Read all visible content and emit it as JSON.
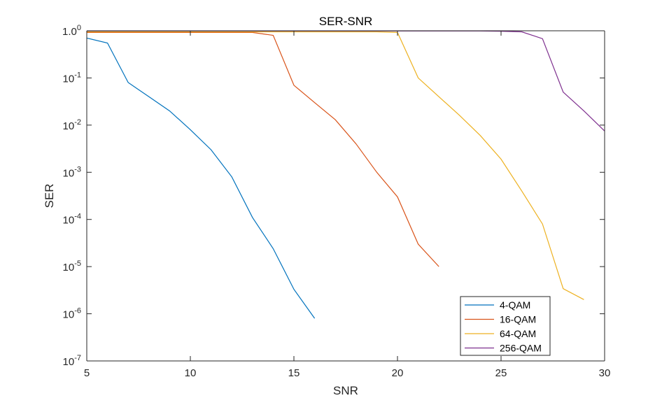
{
  "chart_data": {
    "type": "line",
    "title": "SER-SNR",
    "xlabel": "SNR",
    "ylabel": "SER",
    "xlim": [
      5,
      30
    ],
    "ylim_log10": [
      -7,
      0
    ],
    "y_scale": "log",
    "x_ticks": [
      "5",
      "10",
      "15",
      "20",
      "25",
      "30"
    ],
    "y_ticks": [
      {
        "base": "10",
        "exp": "-7"
      },
      {
        "base": "10",
        "exp": "-6"
      },
      {
        "base": "10",
        "exp": "-5"
      },
      {
        "base": "10",
        "exp": "-4"
      },
      {
        "base": "10",
        "exp": "-3"
      },
      {
        "base": "10",
        "exp": "-2"
      },
      {
        "base": "10",
        "exp": "-1"
      },
      {
        "base": "1.0",
        "exp": "0"
      }
    ],
    "grid": false,
    "legend_position": "bottom-right",
    "series": [
      {
        "name": "4-QAM",
        "color": "#0072BD",
        "x": [
          5,
          6,
          7,
          8,
          9,
          10,
          11,
          12,
          13,
          14,
          15,
          16
        ],
        "y": [
          0.7,
          0.55,
          0.08,
          0.04,
          0.02,
          0.008,
          0.003,
          0.0008,
          0.00011,
          2.4e-05,
          3.3e-06,
          8e-07
        ]
      },
      {
        "name": "16-QAM",
        "color": "#D95319",
        "x": [
          5,
          6,
          7,
          8,
          9,
          10,
          11,
          12,
          13,
          14,
          15,
          16,
          17,
          18,
          19,
          20,
          21,
          22
        ],
        "y": [
          0.92,
          0.92,
          0.92,
          0.92,
          0.92,
          0.92,
          0.92,
          0.92,
          0.92,
          0.8,
          0.07,
          0.03,
          0.013,
          0.004,
          0.001,
          0.0003,
          3e-05,
          1e-05
        ]
      },
      {
        "name": "64-QAM",
        "color": "#EDB120",
        "x": [
          5,
          6,
          7,
          8,
          9,
          10,
          11,
          12,
          13,
          14,
          15,
          16,
          17,
          18,
          19,
          20,
          21,
          22,
          23,
          24,
          25,
          26,
          27,
          28,
          29
        ],
        "y": [
          0.95,
          0.95,
          0.95,
          0.95,
          0.95,
          0.95,
          0.95,
          0.95,
          0.95,
          0.95,
          0.95,
          0.95,
          0.95,
          0.95,
          0.95,
          0.92,
          0.1,
          0.04,
          0.016,
          0.006,
          0.0019,
          0.0004,
          8e-05,
          3.4e-06,
          2e-06
        ]
      },
      {
        "name": "256-QAM",
        "color": "#7E2F8E",
        "x": [
          5,
          6,
          7,
          8,
          9,
          10,
          11,
          12,
          13,
          14,
          15,
          16,
          17,
          18,
          19,
          20,
          21,
          22,
          23,
          24,
          25,
          26,
          27,
          28,
          29,
          30
        ],
        "y": [
          0.99,
          0.99,
          0.99,
          0.99,
          0.99,
          0.99,
          0.99,
          0.99,
          0.99,
          0.99,
          0.99,
          0.99,
          0.99,
          0.99,
          0.99,
          0.99,
          0.99,
          0.99,
          0.99,
          0.99,
          0.98,
          0.95,
          0.68,
          0.05,
          0.02,
          0.0075
        ]
      }
    ]
  }
}
